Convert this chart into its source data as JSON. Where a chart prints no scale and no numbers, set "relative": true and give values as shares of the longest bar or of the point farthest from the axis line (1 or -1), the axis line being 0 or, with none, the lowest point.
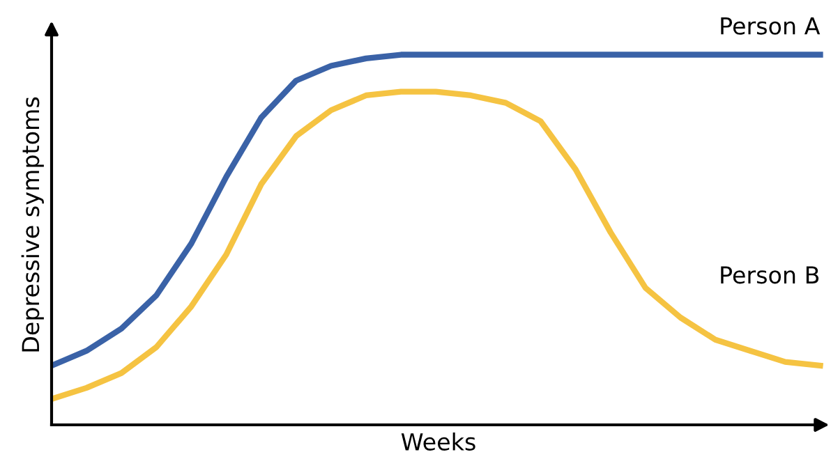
{
  "chart_data": {
    "type": "line",
    "relative": true,
    "xlabel": "Weeks",
    "ylabel": "Depressive symptoms",
    "categories": [
      null,
      null,
      null,
      null,
      null,
      null,
      null,
      null,
      null,
      null,
      null,
      null,
      null,
      null,
      null,
      null,
      null,
      null,
      null,
      null,
      null,
      null,
      null
    ],
    "series": [
      {
        "name": "Person A",
        "color": "#3a62a7",
        "values": [
          0.16,
          0.2,
          0.26,
          0.35,
          0.49,
          0.67,
          0.83,
          0.93,
          0.97,
          0.99,
          1,
          1,
          1,
          1,
          1,
          1,
          1,
          1,
          1,
          1,
          1,
          1,
          1
        ]
      },
      {
        "name": "Person B",
        "color": "#f5c342",
        "values": [
          0.07,
          0.1,
          0.14,
          0.21,
          0.32,
          0.46,
          0.65,
          0.78,
          0.85,
          0.89,
          0.9,
          0.9,
          0.89,
          0.87,
          0.82,
          0.69,
          0.52,
          0.37,
          0.29,
          0.23,
          0.2,
          0.17,
          0.16
        ]
      }
    ],
    "legend": false,
    "tick_labels": false,
    "marker": "none",
    "line_style": "solid"
  }
}
